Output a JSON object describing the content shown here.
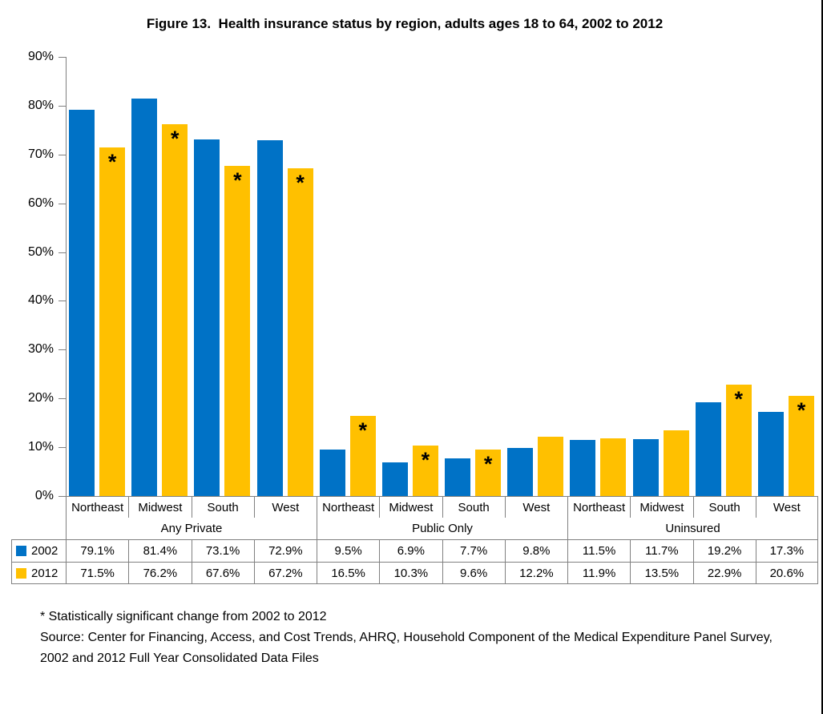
{
  "chart_data": {
    "type": "bar",
    "title": "Figure 13.  Health insurance status by region, adults ages 18 to 64, 2002 to 2012",
    "group_labels": [
      "Any Private",
      "Public Only",
      "Uninsured"
    ],
    "categories": [
      "Northeast",
      "Midwest",
      "South",
      "West",
      "Northeast",
      "Midwest",
      "South",
      "West",
      "Northeast",
      "Midwest",
      "South",
      "West"
    ],
    "series": [
      {
        "name": "2002",
        "color": "#0072C6",
        "values": [
          79.1,
          81.4,
          73.1,
          72.9,
          9.5,
          6.9,
          7.7,
          9.8,
          11.5,
          11.7,
          19.2,
          17.3
        ],
        "significant": [
          false,
          false,
          false,
          false,
          false,
          false,
          false,
          false,
          false,
          false,
          false,
          false
        ]
      },
      {
        "name": "2012",
        "color": "#FFC000",
        "values": [
          71.5,
          76.2,
          67.6,
          67.2,
          16.5,
          10.3,
          9.6,
          12.2,
          11.9,
          13.5,
          22.9,
          20.6
        ],
        "significant": [
          true,
          true,
          true,
          true,
          true,
          true,
          true,
          false,
          false,
          false,
          true,
          true
        ]
      }
    ],
    "ylim": [
      0,
      90
    ],
    "ytick_step": 10,
    "ytick_suffix": "%",
    "grid": false,
    "legend_position": "table-row-headers",
    "significance_marker": "*",
    "value_suffix": "%"
  },
  "footnotes": [
    "* Statistically significant change from 2002 to 2012",
    "Source: Center for Financing, Access, and Cost Trends, AHRQ, Household Component of the Medical Expenditure Panel Survey, 2002 and 2012 Full Year Consolidated Data Files"
  ],
  "colors": {
    "bar_2002": "#0072C6",
    "bar_2012": "#FFC000",
    "axis": "#808080",
    "table_border": "#808080"
  }
}
